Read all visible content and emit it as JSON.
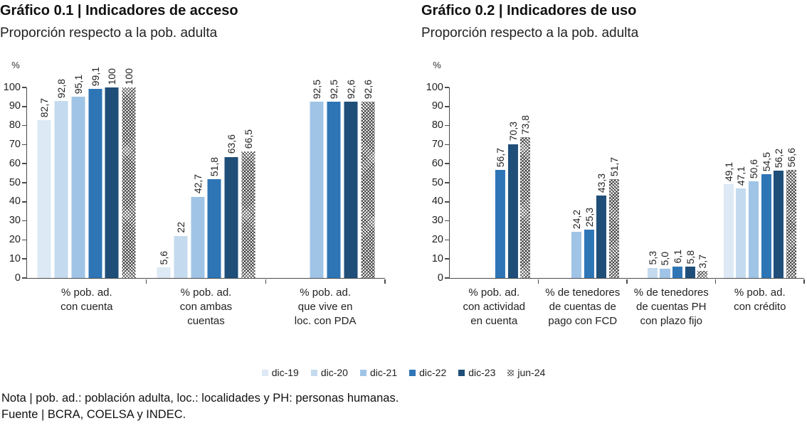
{
  "palette": {
    "dic-19": "#dde9f4",
    "dic-20": "#c4daee",
    "dic-21": "#9fc4e6",
    "dic-22": "#2e75b6",
    "dic-23": "#1f4e79",
    "jun-24": "hatch"
  },
  "legend": {
    "items": [
      "dic-19",
      "dic-20",
      "dic-21",
      "dic-22",
      "dic-23",
      "jun-24"
    ]
  },
  "chart_data": [
    {
      "type": "bar",
      "title": "Gráfico 0.1 | Indicadores de acceso",
      "subtitle": "Proporción respecto a la pob. adulta",
      "unit": "%",
      "ylabel": "%",
      "ylim": [
        0,
        100
      ],
      "ytick_step": 10,
      "grid": false,
      "legend_position": "bottom-shared",
      "categories": [
        "% pob. ad.\ncon cuenta",
        "% pob. ad.\ncon ambas\ncuentas",
        "% pob. ad.\nque vive en\nloc. con PDA"
      ],
      "series": [
        {
          "name": "dic-19",
          "values": [
            82.7,
            5.6,
            null
          ],
          "labels": [
            "82,7",
            "5,6",
            null
          ]
        },
        {
          "name": "dic-20",
          "values": [
            92.8,
            22,
            null
          ],
          "labels": [
            "92,8",
            "22",
            null
          ]
        },
        {
          "name": "dic-21",
          "values": [
            95.1,
            42.7,
            92.5
          ],
          "labels": [
            "95,1",
            "42,7",
            "92,5"
          ]
        },
        {
          "name": "dic-22",
          "values": [
            99.1,
            51.8,
            92.5
          ],
          "labels": [
            "99,1",
            "51,8",
            "92,5"
          ]
        },
        {
          "name": "dic-23",
          "values": [
            100,
            63.6,
            92.6
          ],
          "labels": [
            "100",
            "63,6",
            "92,6"
          ]
        },
        {
          "name": "jun-24",
          "values": [
            100,
            66.5,
            92.6
          ],
          "labels": [
            "100",
            "66,5",
            "92,6"
          ]
        }
      ]
    },
    {
      "type": "bar",
      "title": "Gráfico 0.2 | Indicadores de uso",
      "subtitle": "Proporción respecto a la pob. adulta",
      "unit": "%",
      "ylabel": "%",
      "ylim": [
        0,
        100
      ],
      "ytick_step": 10,
      "grid": false,
      "legend_position": "bottom-shared",
      "categories": [
        "% pob. ad.\ncon actividad\nen cuenta",
        "% de tenedores\nde cuentas de\npago con FCD",
        "% de tenedores\nde cuentas PH\ncon plazo fijo",
        "% pob. ad.\ncon crédito"
      ],
      "series": [
        {
          "name": "dic-19",
          "values": [
            null,
            null,
            null,
            49.1
          ],
          "labels": [
            null,
            null,
            null,
            "49,1"
          ]
        },
        {
          "name": "dic-20",
          "values": [
            null,
            null,
            5.3,
            47.1
          ],
          "labels": [
            null,
            null,
            "5,3",
            "47,1"
          ]
        },
        {
          "name": "dic-21",
          "values": [
            null,
            24.2,
            5.0,
            50.6
          ],
          "labels": [
            null,
            "24,2",
            "5,0",
            "50,6"
          ]
        },
        {
          "name": "dic-22",
          "values": [
            56.7,
            25.3,
            6.1,
            54.5
          ],
          "labels": [
            "56,7",
            "25,3",
            "6,1",
            "54,5"
          ]
        },
        {
          "name": "dic-23",
          "values": [
            70.3,
            43.3,
            5.8,
            56.2
          ],
          "labels": [
            "70,3",
            "43,3",
            "5,8",
            "56,2"
          ]
        },
        {
          "name": "jun-24",
          "values": [
            73.8,
            51.7,
            3.7,
            56.6
          ],
          "labels": [
            "73,8",
            "51,7",
            "3,7",
            "56,6"
          ]
        }
      ]
    }
  ],
  "notes": {
    "line1": "Nota | pob. ad.: población adulta, loc.: localidades y PH: personas humanas.",
    "line2": "Fuente | BCRA, COELSA y INDEC."
  }
}
